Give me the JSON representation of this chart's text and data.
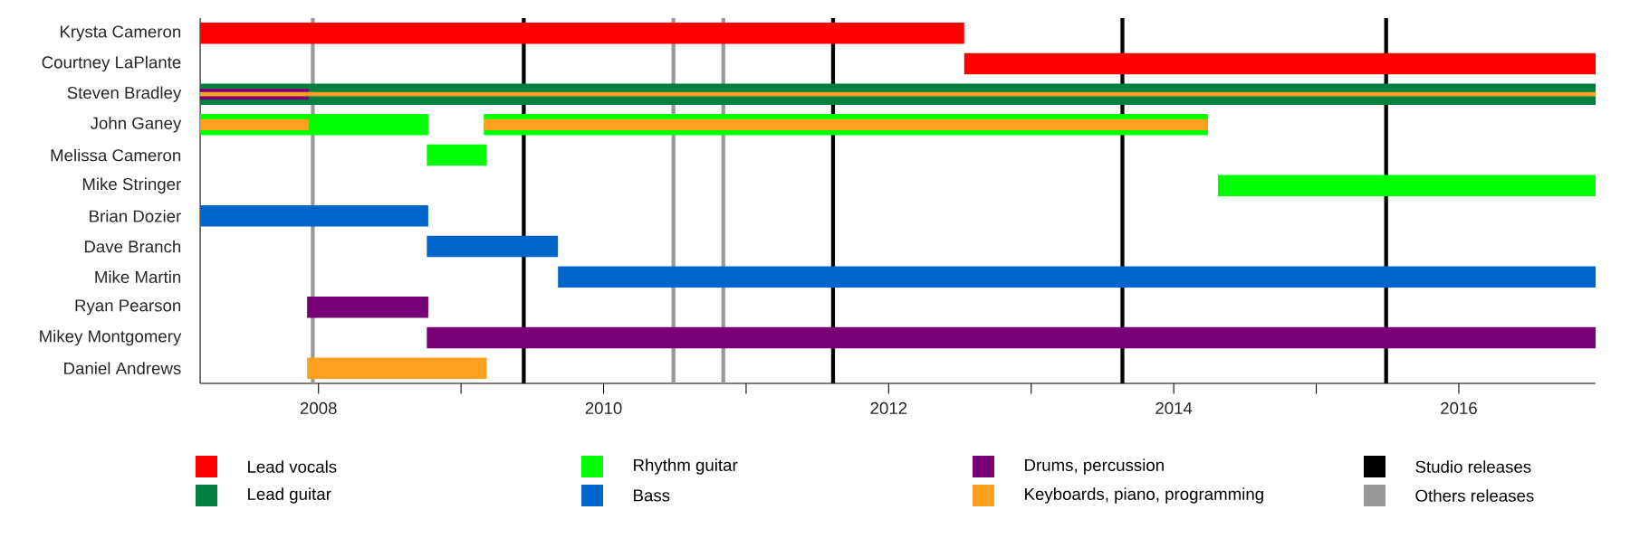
{
  "chart_data": {
    "type": "bar",
    "orientation": "horizontal",
    "categories": [
      "Krysta Cameron",
      "Courtney LaPlante",
      "Steven Bradley",
      "John Ganey",
      "Melissa Cameron",
      "Mike Stringer",
      "Brian Dozier",
      "Dave Branch",
      "Mike Martin",
      "Ryan Pearson",
      "Mikey Montgomery",
      "Daniel Andrews"
    ],
    "xlim": [
      2007.17,
      2016.96
    ],
    "xticks": [
      2008,
      {
        "value": 2009,
        "label": null
      },
      2010,
      {
        "value": 2011,
        "label": null
      },
      2012,
      {
        "value": 2013,
        "label": null
      },
      2014,
      {
        "value": 2015,
        "label": null
      },
      2016
    ],
    "series": [
      {
        "name": "Lead vocals",
        "color": "#ff0000",
        "base": [
          2007.17,
          2012.53,
          null,
          null,
          null,
          null,
          null,
          null,
          null,
          null,
          null,
          null
        ],
        "values": [
          5.36,
          4.43,
          null,
          null,
          null,
          null,
          null,
          null,
          null,
          null,
          null,
          null
        ]
      },
      {
        "name": "Lead guitar",
        "color": "#008040",
        "base": [
          null,
          null,
          2007.17,
          null,
          null,
          null,
          null,
          null,
          null,
          null,
          null,
          null
        ],
        "values": [
          null,
          null,
          9.79,
          null,
          null,
          null,
          null,
          null,
          null,
          null,
          null,
          null
        ]
      },
      {
        "name": "Rhythm guitar",
        "color": "#00ff00",
        "base": [
          null,
          null,
          null,
          2007.17,
          2008.76,
          2014.31,
          null,
          null,
          null,
          null,
          null,
          null
        ],
        "values": [
          null,
          null,
          null,
          1.6,
          0.42,
          2.65,
          null,
          null,
          null,
          null,
          null,
          null
        ]
      },
      {
        "color": "#00ff00",
        "base": [
          null,
          null,
          null,
          2009.16,
          null,
          null,
          null,
          null,
          null,
          null,
          null,
          null
        ],
        "values": [
          null,
          null,
          null,
          5.08,
          null,
          null,
          null,
          null,
          null,
          null,
          null,
          null
        ]
      },
      {
        "name": "Bass",
        "color": "#0066cc",
        "base": [
          null,
          null,
          null,
          null,
          null,
          null,
          2007.17,
          2008.76,
          2009.68,
          null,
          null,
          null
        ],
        "values": [
          null,
          null,
          null,
          null,
          null,
          null,
          1.6,
          0.92,
          7.28,
          null,
          null,
          null
        ]
      },
      {
        "name": "Drums, percussion",
        "color": "#770077",
        "base": [
          null,
          null,
          2007.17,
          null,
          null,
          null,
          null,
          null,
          null,
          2007.92,
          2008.76,
          null
        ],
        "values": [
          null,
          null,
          0.76,
          null,
          null,
          null,
          null,
          null,
          null,
          0.85,
          8.2,
          null
        ]
      },
      {
        "name": "Keyboards, piano, programming",
        "color": "#ffa020",
        "base": [
          null,
          null,
          2007.17,
          2007.17,
          null,
          null,
          null,
          null,
          null,
          null,
          null,
          2007.92
        ],
        "values": [
          null,
          null,
          9.79,
          0.76,
          null,
          null,
          null,
          null,
          null,
          null,
          null,
          1.26
        ]
      },
      {
        "color": "#ffa020",
        "base": [
          null,
          null,
          null,
          2009.16,
          null,
          null,
          null,
          null,
          null,
          null,
          null,
          null
        ],
        "values": [
          null,
          null,
          null,
          5.08,
          null,
          null,
          null,
          null,
          null,
          null,
          null,
          null
        ]
      }
    ],
    "ref_lines": [
      {
        "axis": "x",
        "value": 2009.44,
        "label": "Studio releases",
        "color": "#000000"
      },
      {
        "axis": "x",
        "value": 2011.61,
        "color": "#000000"
      },
      {
        "axis": "x",
        "value": 2013.64,
        "color": "#000000"
      },
      {
        "axis": "x",
        "value": 2015.49,
        "color": "#000000"
      },
      {
        "axis": "x",
        "value": 2007.96,
        "label": "Others releases",
        "color": "#999999"
      },
      {
        "axis": "x",
        "value": 2010.49,
        "color": "#999999"
      },
      {
        "axis": "x",
        "value": 2010.84,
        "color": "#999999"
      }
    ],
    "legend": "bottom"
  }
}
